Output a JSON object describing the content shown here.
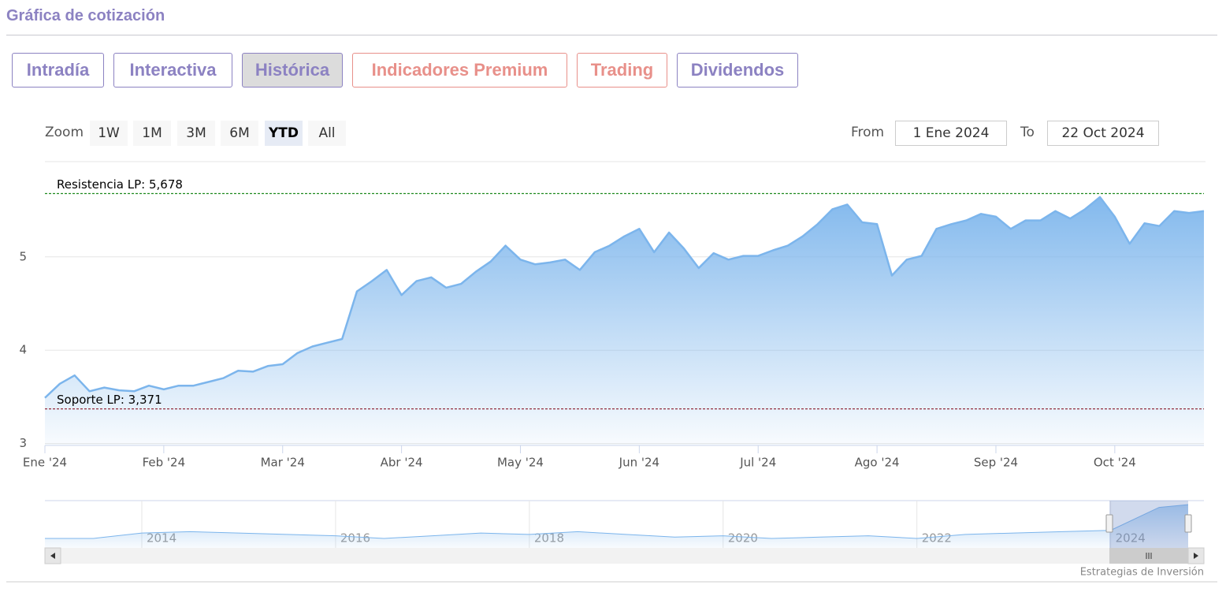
{
  "header": {
    "title": "Gráfica de cotización"
  },
  "tabs": [
    "Intradía",
    "Interactiva",
    "Histórica",
    "Indicadores Premium",
    "Trading",
    "Dividendos"
  ],
  "zoom": {
    "label": "Zoom",
    "buttons": [
      "1W",
      "1M",
      "3M",
      "6M",
      "YTD",
      "All"
    ]
  },
  "range": {
    "from_label": "From",
    "from": "1 Ene 2024",
    "to_label": "To",
    "to": "22 Oct 2024"
  },
  "chart_data": {
    "type": "area",
    "color": "#7cb5ec",
    "grid": true,
    "categories": [
      "Ene '24",
      null,
      null,
      null,
      null,
      null,
      null,
      null,
      "Feb '24",
      null,
      null,
      null,
      null,
      null,
      null,
      null,
      "Mar '24",
      null,
      null,
      null,
      null,
      null,
      null,
      null,
      "Abr '24",
      null,
      null,
      null,
      null,
      null,
      null,
      null,
      "May '24",
      null,
      null,
      null,
      null,
      null,
      null,
      null,
      "Jun '24",
      null,
      null,
      null,
      null,
      null,
      null,
      null,
      "Jul '24",
      null,
      null,
      null,
      null,
      null,
      null,
      null,
      "Ago '24",
      null,
      null,
      null,
      null,
      null,
      null,
      null,
      "Sep '24",
      null,
      null,
      null,
      null,
      null,
      null,
      null,
      "Oct '24",
      null,
      null,
      null,
      null,
      null,
      null
    ],
    "values": [
      3.49,
      3.64,
      3.73,
      3.56,
      3.6,
      3.57,
      3.56,
      3.62,
      3.58,
      3.62,
      3.62,
      3.66,
      3.7,
      3.78,
      3.77,
      3.83,
      3.85,
      3.97,
      4.04,
      4.08,
      4.12,
      4.63,
      4.74,
      4.86,
      4.59,
      4.74,
      4.78,
      4.67,
      4.71,
      4.84,
      4.95,
      5.12,
      4.97,
      4.92,
      4.94,
      4.97,
      4.86,
      5.05,
      5.12,
      5.22,
      5.3,
      5.05,
      5.26,
      5.09,
      4.88,
      5.04,
      4.97,
      5.01,
      5.01,
      5.07,
      5.12,
      5.22,
      5.35,
      5.51,
      5.56,
      5.37,
      5.35,
      4.8,
      4.97,
      5.01,
      5.3,
      5.35,
      5.39,
      5.46,
      5.43,
      5.3,
      5.39,
      5.39,
      5.49,
      5.41,
      5.51,
      5.64,
      5.43,
      5.14,
      5.36,
      5.33,
      5.49,
      5.47,
      5.49
    ],
    "ylim": [
      2.98,
      6.02
    ],
    "yticks": [
      3,
      4,
      5
    ],
    "lines": [
      {
        "label": "Resistencia LP: 5,678",
        "value": 5.678,
        "color": "#1e8a1e"
      },
      {
        "label": "Soporte LP: 3,371",
        "value": 3.371,
        "color": "#8b1a2a"
      }
    ]
  },
  "navigator": {
    "type": "area",
    "color": "#7cb5ec",
    "x": [
      2013,
      2013.5,
      2014,
      2014.5,
      2015,
      2015.5,
      2016,
      2016.5,
      2017,
      2017.5,
      2018,
      2018.5,
      2019,
      2019.5,
      2020,
      2020.5,
      2021,
      2021.5,
      2022,
      2022.5,
      2023,
      2023.5,
      2024,
      2024.5,
      2024.8
    ],
    "values": [
      3.0,
      3.0,
      3.4,
      3.5,
      3.4,
      3.3,
      3.2,
      3.0,
      3.2,
      3.4,
      3.3,
      3.5,
      3.3,
      3.1,
      3.2,
      3.0,
      3.1,
      3.2,
      3.0,
      3.3,
      3.4,
      3.5,
      3.6,
      5.3,
      5.5
    ],
    "xlim": [
      2013,
      2024.8
    ],
    "ylim": [
      2.3,
      5.8
    ],
    "xticks": [
      2014,
      2016,
      2018,
      2020,
      2022,
      2024
    ]
  },
  "credit": "Estrategias de Inversión"
}
